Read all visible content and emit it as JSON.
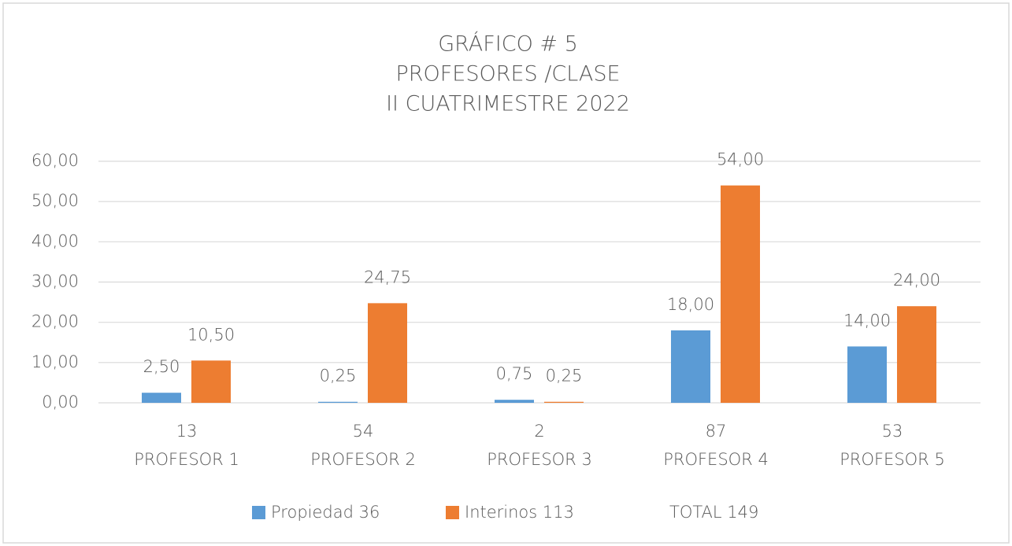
{
  "chart_data": {
    "type": "bar",
    "title": [
      "GRÁFICO # 5",
      "PROFESORES /CLASE",
      "II CUATRIMESTRE 2022"
    ],
    "categories": [
      [
        "13",
        "PROFESOR 1"
      ],
      [
        "54",
        "PROFESOR 2"
      ],
      [
        "2",
        "PROFESOR 3"
      ],
      [
        "87",
        "PROFESOR 4"
      ],
      [
        "53",
        "PROFESOR 5"
      ]
    ],
    "series": [
      {
        "name": "Propiedad 36",
        "color": "#5b9bd5",
        "values": [
          2.5,
          0.25,
          0.75,
          18,
          14
        ],
        "value_labels": [
          "2,50",
          "0,25",
          "0,75",
          "18,00",
          "14,00"
        ]
      },
      {
        "name": "Interinos 113",
        "color": "#ed7d31",
        "values": [
          10.5,
          24.75,
          0.25,
          54,
          24
        ],
        "value_labels": [
          "10,50",
          "24,75",
          "0,25",
          "54,00",
          "24,00"
        ]
      }
    ],
    "annotation": "TOTAL 149",
    "ylim": [
      0,
      60
    ],
    "yticks": [
      {
        "value": 0,
        "label": "0,00"
      },
      {
        "value": 10,
        "label": "10,00"
      },
      {
        "value": 20,
        "label": "20,00"
      },
      {
        "value": 30,
        "label": "30,00"
      },
      {
        "value": 40,
        "label": "40,00"
      },
      {
        "value": 50,
        "label": "50,00"
      },
      {
        "value": 60,
        "label": "60,00"
      }
    ],
    "grid": true
  }
}
